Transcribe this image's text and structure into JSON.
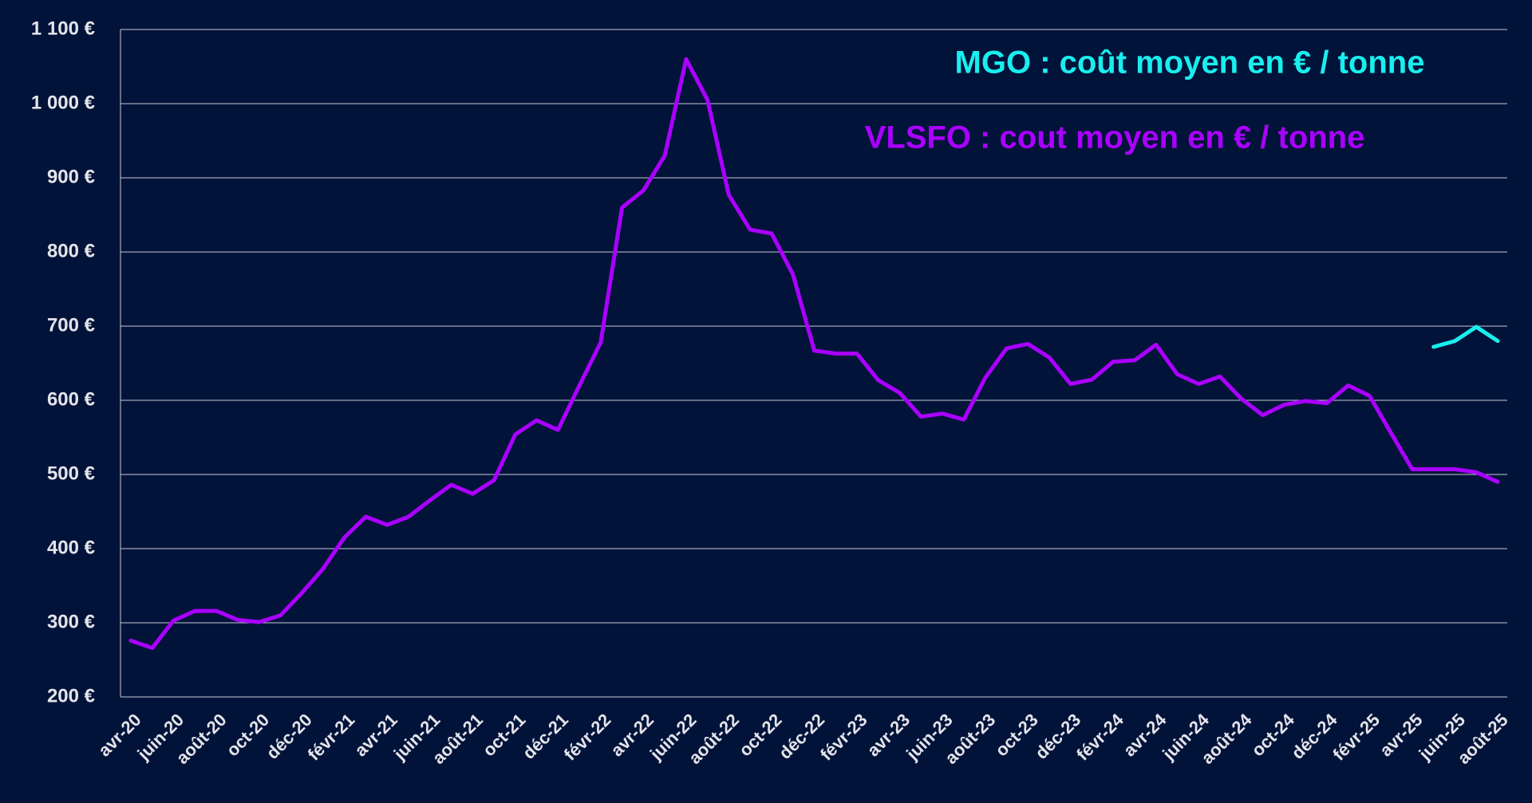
{
  "chart_data": {
    "type": "line",
    "categories": [
      "avr-20",
      null,
      "juin-20",
      null,
      "août-20",
      null,
      "oct-20",
      null,
      "déc-20",
      null,
      "févr-21",
      null,
      "avr-21",
      null,
      "juin-21",
      null,
      "août-21",
      null,
      "oct-21",
      null,
      "déc-21",
      null,
      "févr-22",
      null,
      "avr-22",
      null,
      "juin-22",
      null,
      "août-22",
      null,
      "oct-22",
      null,
      "déc-22",
      null,
      "févr-23",
      null,
      "avr-23",
      null,
      "juin-23",
      null,
      "août-23",
      null,
      "oct-23",
      null,
      "déc-23",
      null,
      "févr-24",
      null,
      "avr-24",
      null,
      "juin-24",
      null,
      "août-24",
      null,
      "oct-24",
      null,
      "déc-24",
      null,
      "févr-25",
      null,
      "avr-25",
      null,
      "juin-25",
      null,
      "août-25"
    ],
    "series": [
      {
        "name": "MGO : coût moyen en € / tonne",
        "color": "#19eeee",
        "values": [
          null,
          null,
          null,
          null,
          null,
          null,
          null,
          null,
          null,
          null,
          null,
          null,
          null,
          null,
          null,
          null,
          null,
          null,
          null,
          null,
          null,
          null,
          null,
          null,
          null,
          null,
          null,
          null,
          null,
          null,
          null,
          null,
          null,
          null,
          null,
          null,
          null,
          null,
          null,
          null,
          null,
          null,
          null,
          null,
          null,
          null,
          null,
          null,
          null,
          null,
          null,
          null,
          null,
          null,
          null,
          null,
          null,
          null,
          null,
          null,
          null,
          672,
          680,
          699,
          680
        ]
      },
      {
        "name": "VLSFO : cout moyen en € / tonne",
        "color": "#aa00ff",
        "values": [
          276,
          266,
          303,
          316,
          316,
          304,
          301,
          310,
          340,
          373,
          415,
          443,
          432,
          443,
          465,
          486,
          474,
          492,
          554,
          573,
          560,
          620,
          678,
          860,
          883,
          930,
          1060,
          1005,
          877,
          830,
          825,
          770,
          667,
          663,
          663,
          627,
          610,
          578,
          582,
          574,
          630,
          670,
          676,
          658,
          622,
          628,
          652,
          654,
          675,
          635,
          622,
          632,
          602,
          580,
          594,
          599,
          596,
          620,
          606,
          556,
          507,
          507,
          507,
          503,
          490
        ]
      }
    ],
    "ylim": [
      200,
      1100
    ],
    "yticks": [
      {
        "value": 200,
        "label": "200 €"
      },
      {
        "value": 300,
        "label": "300 €"
      },
      {
        "value": 400,
        "label": "400 €"
      },
      {
        "value": 500,
        "label": "500 €"
      },
      {
        "value": 600,
        "label": "600 €"
      },
      {
        "value": 700,
        "label": "700 €"
      },
      {
        "value": 800,
        "label": "800 €"
      },
      {
        "value": 900,
        "label": "900 €"
      },
      {
        "value": 1000,
        "label": "1 000 €"
      },
      {
        "value": 1100,
        "label": "1 100 €"
      }
    ],
    "grid": true
  }
}
